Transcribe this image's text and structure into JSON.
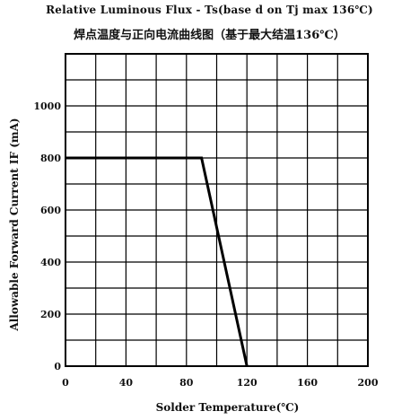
{
  "chart_data": {
    "type": "line",
    "title": "Relative Luminous Flux - Ts(base d on Tj max 136℃)",
    "subtitle": "焊点温度与正向电流曲线图（基于最大结温136℃）",
    "xlabel": "Solder Temperature(℃)",
    "ylabel": "Allowable Forward Current IF (mA)",
    "xlim": [
      0,
      200
    ],
    "ylim": [
      0,
      1200
    ],
    "x_ticks": [
      0,
      40,
      80,
      120,
      160,
      200
    ],
    "y_ticks": [
      0,
      200,
      400,
      600,
      800,
      1000
    ],
    "grid": true,
    "series": [
      {
        "x": [
          0,
          90,
          120
        ],
        "y": [
          800,
          800,
          0
        ],
        "color": "#000000"
      }
    ]
  }
}
